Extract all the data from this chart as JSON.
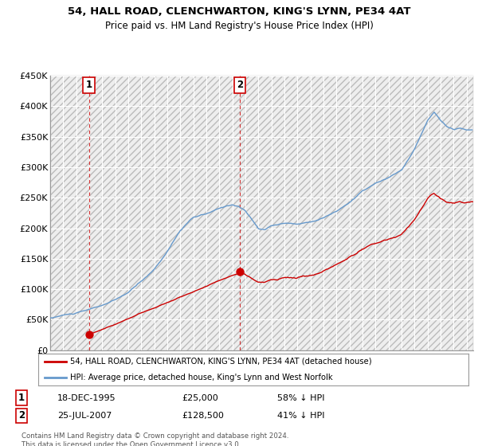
{
  "title1": "54, HALL ROAD, CLENCHWARTON, KING'S LYNN, PE34 4AT",
  "title2": "Price paid vs. HM Land Registry's House Price Index (HPI)",
  "legend_property": "54, HALL ROAD, CLENCHWARTON, KING'S LYNN, PE34 4AT (detached house)",
  "legend_hpi": "HPI: Average price, detached house, King's Lynn and West Norfolk",
  "footnote": "Contains HM Land Registry data © Crown copyright and database right 2024.\nThis data is licensed under the Open Government Licence v3.0.",
  "transaction1_date": "18-DEC-1995",
  "transaction1_price": "£25,000",
  "transaction1_hpi": "58% ↓ HPI",
  "transaction1_year": 1995.97,
  "transaction1_value": 25000,
  "transaction2_date": "25-JUL-2007",
  "transaction2_price": "£128,500",
  "transaction2_hpi": "41% ↓ HPI",
  "transaction2_year": 2007.56,
  "transaction2_value": 128500,
  "ylim": [
    0,
    450000
  ],
  "yticks": [
    0,
    50000,
    100000,
    150000,
    200000,
    250000,
    300000,
    350000,
    400000,
    450000
  ],
  "line_property_color": "#cc0000",
  "line_hpi_color": "#6699cc",
  "marker_color": "#cc0000",
  "vline_color": "#cc0000",
  "grid_color": "#cccccc",
  "box_label_color": "#cc0000",
  "xmin": 1993,
  "xmax": 2025.5
}
